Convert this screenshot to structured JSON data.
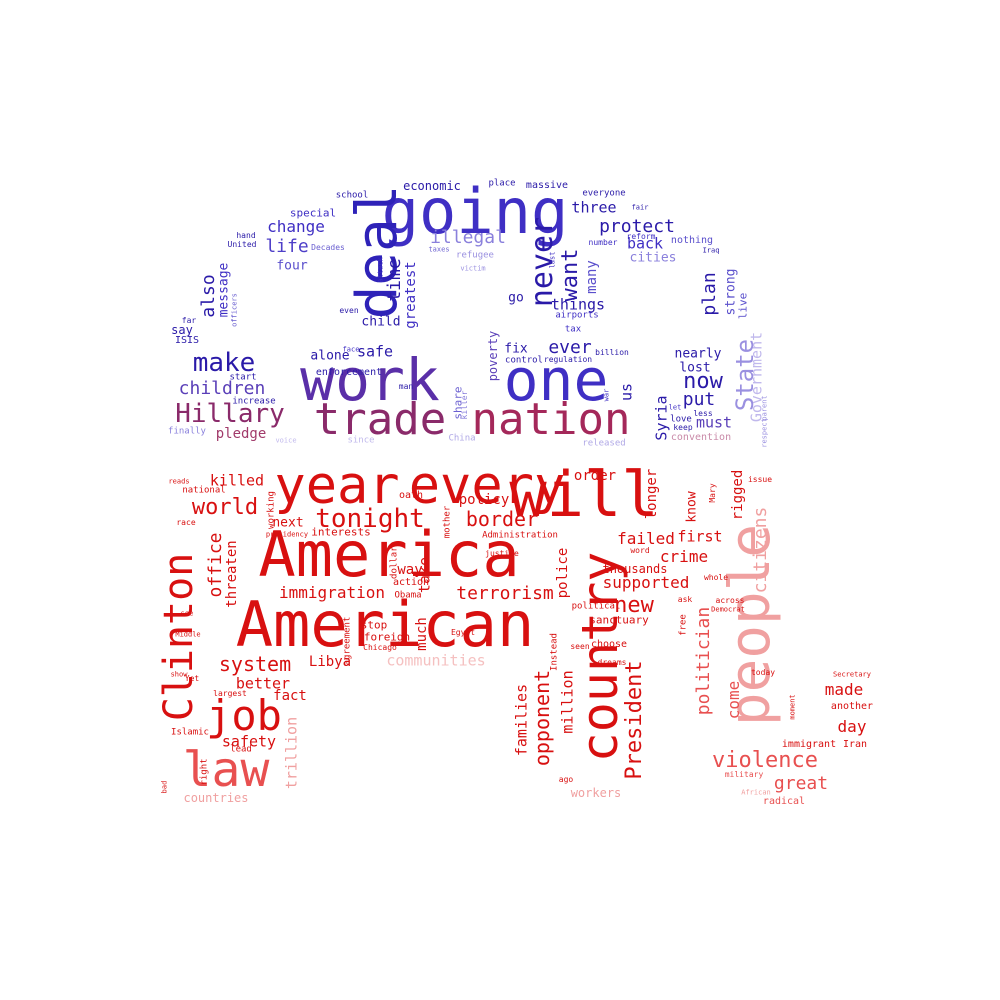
{
  "words": [
    {
      "text": "going",
      "c": "#3f2fc4",
      "r": 0
    },
    {
      "text": "deal",
      "c": "#2e22b8",
      "r": -90
    },
    {
      "text": "work",
      "c": "#5a2fa8",
      "r": 0
    },
    {
      "text": "one",
      "c": "#3f2fc4",
      "r": 0
    },
    {
      "text": "trade",
      "c": "#8a2a6a",
      "r": 0
    },
    {
      "text": "nation",
      "c": "#a4285a",
      "r": 0
    },
    {
      "text": "Hillary",
      "c": "#8a2a6a",
      "r": 0
    },
    {
      "text": "make",
      "c": "#2a1aa8",
      "r": 0
    },
    {
      "text": "children",
      "c": "#5a3fb8",
      "r": 0
    },
    {
      "text": "pledge",
      "c": "#a13a6a",
      "r": 0
    },
    {
      "text": "economic",
      "c": "#2a1aa8",
      "r": 0
    },
    {
      "text": "place",
      "c": "#2a1aa8",
      "r": 0
    },
    {
      "text": "massive",
      "c": "#2a1aa8",
      "r": 0
    },
    {
      "text": "everyone",
      "c": "#2a1aa8",
      "r": 0
    },
    {
      "text": "school",
      "c": "#2a1aa8",
      "r": 0
    },
    {
      "text": "special",
      "c": "#3f2fc4",
      "r": 0
    },
    {
      "text": "change",
      "c": "#3f2fc4",
      "r": 0
    },
    {
      "text": "life",
      "c": "#4e3fc8",
      "r": 0
    },
    {
      "text": "four",
      "c": "#5a4fcc",
      "r": 0
    },
    {
      "text": "hand",
      "c": "#2a1aa8",
      "r": 0
    },
    {
      "text": "United",
      "c": "#2a1aa8",
      "r": 0
    },
    {
      "text": "Decades",
      "c": "#6a5fd0",
      "r": 0
    },
    {
      "text": "three",
      "c": "#2a1aa8",
      "r": 0
    },
    {
      "text": "protect",
      "c": "#2a1aa8",
      "r": 0
    },
    {
      "text": "illegal",
      "c": "#8a80dc",
      "r": 0
    },
    {
      "text": "back",
      "c": "#3f2fc4",
      "r": 0
    },
    {
      "text": "cities",
      "c": "#8a80dc",
      "r": 0
    },
    {
      "text": "nothing",
      "c": "#5a4fcc",
      "r": 0
    },
    {
      "text": "number",
      "c": "#3f2fc4",
      "r": 0
    },
    {
      "text": "refugee",
      "c": "#9a90e0",
      "r": 0
    },
    {
      "text": "victim",
      "c": "#9a90e0",
      "r": 0
    },
    {
      "text": "time",
      "c": "#2a1aa8",
      "r": -90
    },
    {
      "text": "greatest",
      "c": "#3f2fc4",
      "r": -90
    },
    {
      "text": "never",
      "c": "#2a1aa8",
      "r": -90
    },
    {
      "text": "want",
      "c": "#2a1aa8",
      "r": -90
    },
    {
      "text": "many",
      "c": "#5a4fcc",
      "r": -90
    },
    {
      "text": "also",
      "c": "#2a1aa8",
      "r": -90
    },
    {
      "text": "message",
      "c": "#3f2fc4",
      "r": -90
    },
    {
      "text": "things",
      "c": "#2a1aa8",
      "r": 0
    },
    {
      "text": "go",
      "c": "#2a1aa8",
      "r": 0
    },
    {
      "text": "child",
      "c": "#2a1aa8",
      "r": 0
    },
    {
      "text": "even",
      "c": "#2a1aa8",
      "r": 0
    },
    {
      "text": "airports",
      "c": "#3f2fc4",
      "r": 0
    },
    {
      "text": "tax",
      "c": "#3f2fc4",
      "r": 0
    },
    {
      "text": "plan",
      "c": "#2a1aa8",
      "r": -90
    },
    {
      "text": "strong",
      "c": "#5a4fcc",
      "r": -90
    },
    {
      "text": "live",
      "c": "#5a4fcc",
      "r": -90
    },
    {
      "text": "say",
      "c": "#2a1aa8",
      "r": 0
    },
    {
      "text": "ISIS",
      "c": "#2a1aa8",
      "r": 0
    },
    {
      "text": "far",
      "c": "#2a1aa8",
      "r": 0
    },
    {
      "text": "officers",
      "c": "#6a5fd0",
      "r": -90
    },
    {
      "text": "safe",
      "c": "#2a1aa8",
      "r": 0
    },
    {
      "text": "alone",
      "c": "#2a1aa8",
      "r": 0
    },
    {
      "text": "ever",
      "c": "#2a1aa8",
      "r": 0
    },
    {
      "text": "fix",
      "c": "#2a1aa8",
      "r": 0
    },
    {
      "text": "poverty",
      "c": "#5a3fb8",
      "r": -90
    },
    {
      "text": "regulation",
      "c": "#2a1aa8",
      "r": 0
    },
    {
      "text": "billion",
      "c": "#2a1aa8",
      "r": 0
    },
    {
      "text": "nearly",
      "c": "#2a1aa8",
      "r": 0
    },
    {
      "text": "lost",
      "c": "#2a1aa8",
      "r": 0
    },
    {
      "text": "now",
      "c": "#2a1aa8",
      "r": 0
    },
    {
      "text": "State",
      "c": "#9a90e0",
      "r": -90
    },
    {
      "text": "Government",
      "c": "#c0b8ec",
      "r": -90
    },
    {
      "text": "put",
      "c": "#2a1aa8",
      "r": 0
    },
    {
      "text": "must",
      "c": "#5a3fb8",
      "r": 0
    },
    {
      "text": "keep",
      "c": "#2a1aa8",
      "r": 0
    },
    {
      "text": "Syria",
      "c": "#2a1aa8",
      "r": -90
    },
    {
      "text": "us",
      "c": "#2a1aa8",
      "r": -90
    },
    {
      "text": "share",
      "c": "#6a5fd0",
      "r": -90
    },
    {
      "text": "killer",
      "c": "#8a80dc",
      "r": -90
    },
    {
      "text": "China",
      "c": "#b0a8e6",
      "r": 0
    },
    {
      "text": "since",
      "c": "#c0b8ec",
      "r": 0
    },
    {
      "text": "released",
      "c": "#b0a8e6",
      "r": 0
    },
    {
      "text": "convention",
      "c": "#c98aa8",
      "r": 0
    },
    {
      "text": "enforcement",
      "c": "#2a1aa8",
      "r": 0
    },
    {
      "text": "start",
      "c": "#2a1aa8",
      "r": 0
    },
    {
      "text": "increase",
      "c": "#2a1aa8",
      "r": 0
    },
    {
      "text": "finally",
      "c": "#8a80dc",
      "r": 0
    },
    {
      "text": "voice",
      "c": "#c0b8ec",
      "r": 0
    },
    {
      "text": "attack",
      "c": "#3f2fc4",
      "r": -90
    },
    {
      "text": "face",
      "c": "#3f2fc4",
      "r": 0
    },
    {
      "text": "control",
      "c": "#2a1aa8",
      "r": 0
    },
    {
      "text": "last",
      "c": "#3f2fc4",
      "r": -90
    },
    {
      "text": "man",
      "c": "#2a1aa8",
      "r": 0
    },
    {
      "text": "war",
      "c": "#3f2fc4",
      "r": -90
    },
    {
      "text": "love",
      "c": "#2a1aa8",
      "r": 0
    },
    {
      "text": "let",
      "c": "#3f2fc4",
      "r": 0
    },
    {
      "text": "less",
      "c": "#2a1aa8",
      "r": 0
    },
    {
      "text": "respect",
      "c": "#9a90e0",
      "r": -90
    },
    {
      "text": "parent",
      "c": "#9a90e0",
      "r": -90
    },
    {
      "text": "fair",
      "c": "#2a1aa8",
      "r": 0
    },
    {
      "text": "Iraq",
      "c": "#2a1aa8",
      "r": 0
    },
    {
      "text": "reform",
      "c": "#3f2fc4",
      "r": 0
    },
    {
      "text": "taxes",
      "c": "#6a5fd0",
      "r": 0
    },
    {
      "text": "will",
      "c": "#d81010",
      "r": 0
    },
    {
      "text": "year",
      "c": "#d81010",
      "r": 0
    },
    {
      "text": "every",
      "c": "#d81010",
      "r": 0
    },
    {
      "text": "America",
      "c": "#d81010",
      "r": 0
    },
    {
      "text": "American",
      "c": "#d81010",
      "r": 0
    },
    {
      "text": "country",
      "c": "#d81010",
      "r": -90
    },
    {
      "text": "people",
      "c": "#f0a0a0",
      "r": -90
    },
    {
      "text": "Clinton",
      "c": "#d81010",
      "r": -90
    },
    {
      "text": "job",
      "c": "#d81010",
      "r": 0
    },
    {
      "text": "law",
      "c": "#e85050",
      "r": 0
    },
    {
      "text": "tonight",
      "c": "#d81010",
      "r": 0
    },
    {
      "text": "border",
      "c": "#d81010",
      "r": 0
    },
    {
      "text": "world",
      "c": "#d81010",
      "r": 0
    },
    {
      "text": "killed",
      "c": "#d81010",
      "r": 0
    },
    {
      "text": "national",
      "c": "#d81010",
      "r": 0
    },
    {
      "text": "reads",
      "c": "#d81010",
      "r": 0
    },
    {
      "text": "race",
      "c": "#d81010",
      "r": 0
    },
    {
      "text": "office",
      "c": "#d81010",
      "r": -90
    },
    {
      "text": "threaten",
      "c": "#d81010",
      "r": -90
    },
    {
      "text": "working",
      "c": "#d81010",
      "r": -90
    },
    {
      "text": "presidency",
      "c": "#d81010",
      "r": 0
    },
    {
      "text": "next",
      "c": "#d81010",
      "r": 0
    },
    {
      "text": "interests",
      "c": "#d81010",
      "r": 0
    },
    {
      "text": "immigration",
      "c": "#d81010",
      "r": 0
    },
    {
      "text": "terrorism",
      "c": "#d81010",
      "r": 0
    },
    {
      "text": "system",
      "c": "#d81010",
      "r": 0
    },
    {
      "text": "better",
      "c": "#d81010",
      "r": 0
    },
    {
      "text": "fact",
      "c": "#d81010",
      "r": 0
    },
    {
      "text": "safety",
      "c": "#d81010",
      "r": 0
    },
    {
      "text": "lead",
      "c": "#d81010",
      "r": 0
    },
    {
      "text": "Islamic",
      "c": "#d81010",
      "r": 0
    },
    {
      "text": "largest",
      "c": "#d81010",
      "r": 0
    },
    {
      "text": "Yet",
      "c": "#d81010",
      "r": 0
    },
    {
      "text": "show",
      "c": "#d81010",
      "r": 0
    },
    {
      "text": "Middle",
      "c": "#d81010",
      "r": 0
    },
    {
      "text": "see",
      "c": "#d81010",
      "r": 0
    },
    {
      "text": "right",
      "c": "#d81010",
      "r": -90
    },
    {
      "text": "bad",
      "c": "#d81010",
      "r": -90
    },
    {
      "text": "countries",
      "c": "#f0a0a0",
      "r": 0
    },
    {
      "text": "trillion",
      "c": "#f0a0a0",
      "r": -90
    },
    {
      "text": "communities",
      "c": "#f5c0c0",
      "r": 0
    },
    {
      "text": "Libya",
      "c": "#d81010",
      "r": 0
    },
    {
      "text": "stop",
      "c": "#d81010",
      "r": 0
    },
    {
      "text": "foreign",
      "c": "#d81010",
      "r": 0
    },
    {
      "text": "Chicago",
      "c": "#d81010",
      "r": 0
    },
    {
      "text": "agreement",
      "c": "#d81010",
      "r": -90
    },
    {
      "text": "much",
      "c": "#d81010",
      "r": -90
    },
    {
      "text": "way",
      "c": "#d81010",
      "r": 0
    },
    {
      "text": "action",
      "c": "#d81010",
      "r": 0
    },
    {
      "text": "Obama",
      "c": "#d81010",
      "r": 0
    },
    {
      "text": "dollars",
      "c": "#d81010",
      "r": -90
    },
    {
      "text": "take",
      "c": "#d81010",
      "r": -90
    },
    {
      "text": "oath",
      "c": "#d81010",
      "r": 0
    },
    {
      "text": "mother",
      "c": "#d81010",
      "r": -90
    },
    {
      "text": "policy",
      "c": "#d81010",
      "r": 0
    },
    {
      "text": "justice",
      "c": "#d81010",
      "r": 0
    },
    {
      "text": "Administration",
      "c": "#d81010",
      "r": 0
    },
    {
      "text": "Egypt",
      "c": "#d81010",
      "r": 0
    },
    {
      "text": "families",
      "c": "#d81010",
      "r": -90
    },
    {
      "text": "opponent",
      "c": "#d81010",
      "r": -90
    },
    {
      "text": "million",
      "c": "#d81010",
      "r": -90
    },
    {
      "text": "Instead",
      "c": "#d81010",
      "r": -90
    },
    {
      "text": "police",
      "c": "#d81010",
      "r": -90
    },
    {
      "text": "President",
      "c": "#d81010",
      "r": -90
    },
    {
      "text": "order",
      "c": "#d81010",
      "r": 0
    },
    {
      "text": "longer",
      "c": "#d81010",
      "r": -90
    },
    {
      "text": "know",
      "c": "#d81010",
      "r": -90
    },
    {
      "text": "Mary",
      "c": "#d81010",
      "r": -90
    },
    {
      "text": "rigged",
      "c": "#d81010",
      "r": -90
    },
    {
      "text": "issue",
      "c": "#d81010",
      "r": 0
    },
    {
      "text": "citizens",
      "c": "#f0a0a0",
      "r": -90
    },
    {
      "text": "failed",
      "c": "#d81010",
      "r": 0
    },
    {
      "text": "first",
      "c": "#d81010",
      "r": 0
    },
    {
      "text": "crime",
      "c": "#d81010",
      "r": 0
    },
    {
      "text": "word",
      "c": "#d81010",
      "r": 0
    },
    {
      "text": "thousands",
      "c": "#d81010",
      "r": 0
    },
    {
      "text": "whole",
      "c": "#d81010",
      "r": 0
    },
    {
      "text": "supported",
      "c": "#d81010",
      "r": 0
    },
    {
      "text": "new",
      "c": "#d81010",
      "r": 0
    },
    {
      "text": "ask",
      "c": "#d81010",
      "r": 0
    },
    {
      "text": "across",
      "c": "#d81010",
      "r": 0
    },
    {
      "text": "political",
      "c": "#d81010",
      "r": 0
    },
    {
      "text": "Democrat",
      "c": "#d81010",
      "r": 0
    },
    {
      "text": "sanctuary",
      "c": "#d81010",
      "r": 0
    },
    {
      "text": "free",
      "c": "#d81010",
      "r": -90
    },
    {
      "text": "choose",
      "c": "#d81010",
      "r": 0
    },
    {
      "text": "seen",
      "c": "#d81010",
      "r": 0
    },
    {
      "text": "dreams",
      "c": "#d81010",
      "r": 0
    },
    {
      "text": "politician",
      "c": "#e85050",
      "r": -90
    },
    {
      "text": "come",
      "c": "#e85050",
      "r": -90
    },
    {
      "text": "today",
      "c": "#d81010",
      "r": 0
    },
    {
      "text": "Secretary",
      "c": "#d81010",
      "r": 0
    },
    {
      "text": "made",
      "c": "#d81010",
      "r": 0
    },
    {
      "text": "another",
      "c": "#d81010",
      "r": 0
    },
    {
      "text": "moment",
      "c": "#d81010",
      "r": -90
    },
    {
      "text": "day",
      "c": "#d81010",
      "r": 0
    },
    {
      "text": "immigrant",
      "c": "#d81010",
      "r": 0
    },
    {
      "text": "Iran",
      "c": "#d81010",
      "r": 0
    },
    {
      "text": "violence",
      "c": "#e85050",
      "r": 0
    },
    {
      "text": "great",
      "c": "#e85050",
      "r": 0
    },
    {
      "text": "military",
      "c": "#e85050",
      "r": 0
    },
    {
      "text": "African",
      "c": "#f0a0a0",
      "r": 0
    },
    {
      "text": "radical",
      "c": "#e85050",
      "r": 0
    },
    {
      "text": "ago",
      "c": "#d81010",
      "r": 0
    },
    {
      "text": "workers",
      "c": "#f0a0a0",
      "r": 0
    }
  ]
}
